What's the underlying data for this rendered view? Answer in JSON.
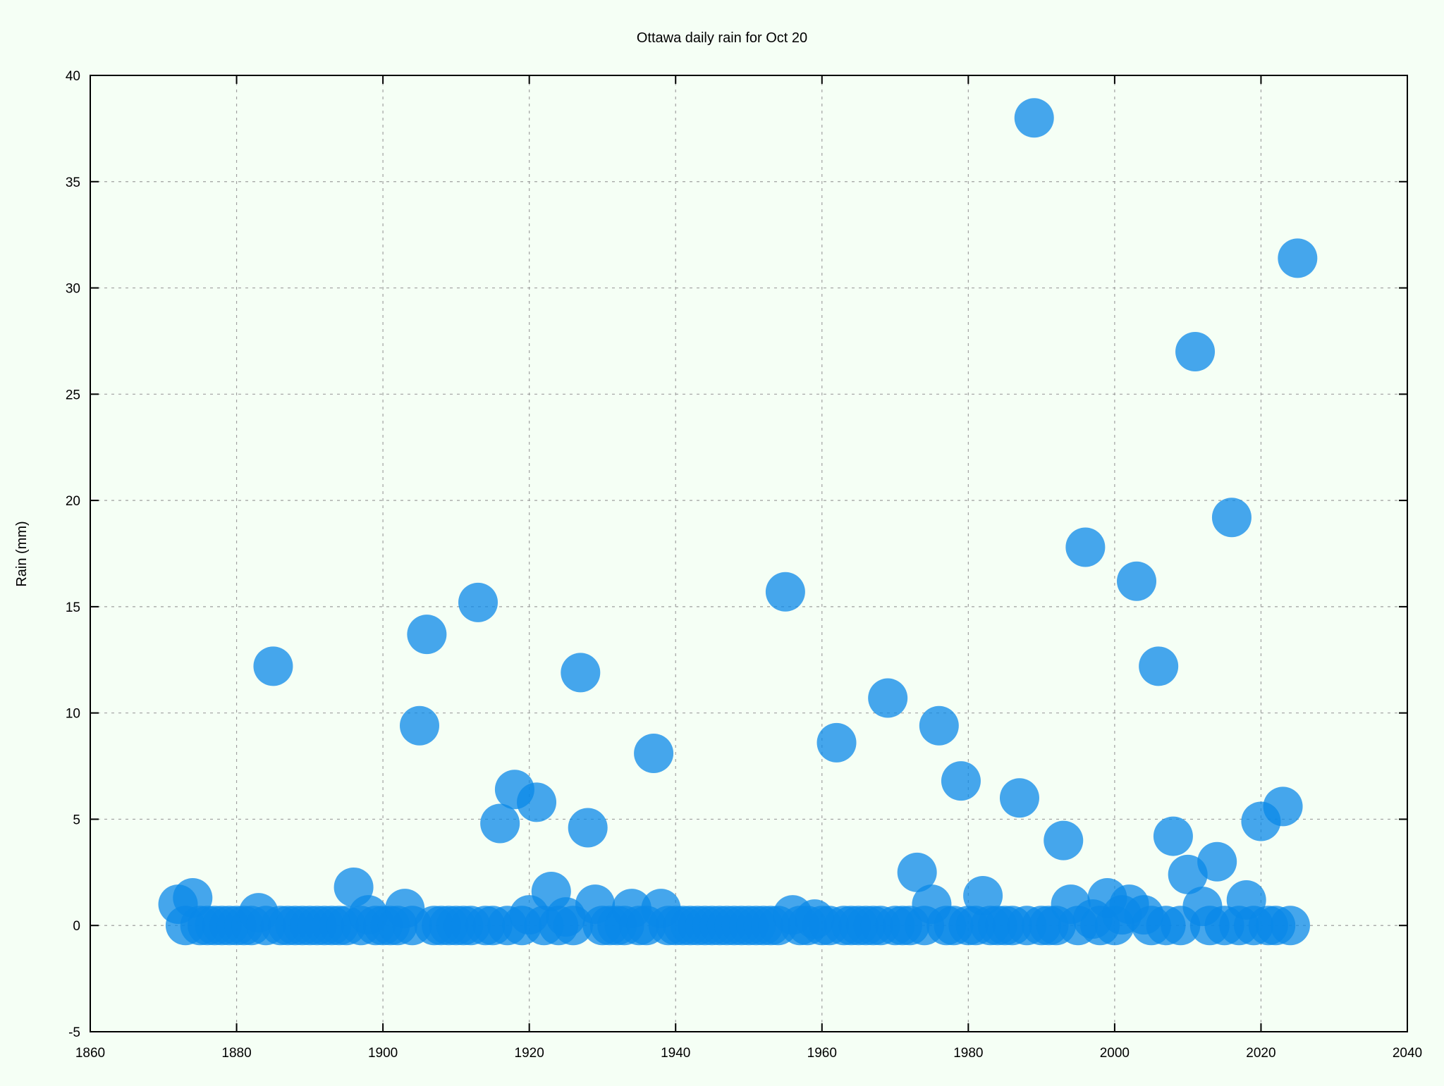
{
  "chart_data": {
    "type": "scatter",
    "title": "Ottawa daily rain for Oct 20",
    "xlabel": "",
    "ylabel": "Rain (mm)",
    "xlim": [
      1860,
      2040
    ],
    "ylim": [
      -5,
      40
    ],
    "xticks": [
      1860,
      1880,
      1900,
      1920,
      1940,
      1960,
      1980,
      2000,
      2020,
      2040
    ],
    "yticks": [
      -5,
      0,
      5,
      10,
      15,
      20,
      25,
      30,
      35,
      40
    ],
    "grid": true,
    "legend": "none",
    "marker_color": "#0a88e8",
    "background": "#f5fff5",
    "series": [
      {
        "x": [
          1872,
          1873,
          1874,
          1875,
          1876,
          1877,
          1878,
          1879,
          1880,
          1881,
          1882,
          1883,
          1884,
          1885,
          1886,
          1887,
          1888,
          1889,
          1890,
          1891,
          1892,
          1893,
          1894,
          1895,
          1896,
          1897,
          1898,
          1899,
          1900,
          1901,
          1902,
          1903,
          1904,
          1905,
          1906,
          1907,
          1908,
          1909,
          1910,
          1911,
          1912,
          1913,
          1914,
          1915,
          1916,
          1917,
          1918,
          1919,
          1920,
          1921,
          1922,
          1923,
          1924,
          1925,
          1926,
          1927,
          1928,
          1929,
          1930,
          1931,
          1932,
          1933,
          1934,
          1935,
          1936,
          1937,
          1938,
          1939,
          1940,
          1941,
          1942,
          1943,
          1944,
          1945,
          1946,
          1947,
          1948,
          1949,
          1950,
          1951,
          1952,
          1953,
          1954,
          1955,
          1956,
          1957,
          1958,
          1959,
          1960,
          1961,
          1962,
          1963,
          1964,
          1965,
          1966,
          1967,
          1968,
          1969,
          1970,
          1971,
          1972,
          1973,
          1974,
          1975,
          1976,
          1977,
          1978,
          1979,
          1980,
          1981,
          1982,
          1983,
          1984,
          1985,
          1986,
          1987,
          1988,
          1989,
          1990,
          1991,
          1992,
          1993,
          1994,
          1995,
          1996,
          1997,
          1998,
          1999,
          2000,
          2001,
          2002,
          2003,
          2004,
          2005,
          2006,
          2007,
          2008,
          2009,
          2010,
          2011,
          2012,
          2013,
          2014,
          2015,
          2016,
          2017,
          2018,
          2019,
          2020,
          2021,
          2022,
          2023,
          2024,
          2025
        ],
        "y": [
          1.0,
          0.0,
          1.3,
          0.0,
          0.0,
          0.0,
          0.0,
          0.0,
          0.0,
          0.0,
          0.0,
          0.6,
          0.0,
          12.2,
          0.0,
          0.0,
          0.0,
          0.0,
          0.0,
          0.0,
          0.0,
          0.0,
          0.0,
          0.0,
          1.8,
          0.0,
          0.5,
          0.0,
          0.0,
          0.0,
          0.0,
          0.8,
          0.0,
          9.4,
          13.7,
          0.0,
          0.0,
          0.0,
          0.0,
          0.0,
          0.0,
          15.2,
          0.0,
          0.0,
          4.8,
          0.0,
          6.4,
          0.0,
          0.5,
          5.8,
          0.0,
          1.6,
          0.0,
          0.4,
          0.0,
          11.9,
          4.6,
          1.0,
          0.0,
          0.0,
          0.0,
          0.0,
          0.8,
          0.0,
          0.0,
          8.1,
          0.8,
          0.0,
          0.0,
          0.0,
          0.0,
          0.0,
          0.0,
          0.0,
          0.0,
          0.0,
          0.0,
          0.0,
          0.0,
          0.0,
          0.0,
          0.0,
          0.0,
          15.7,
          0.5,
          0.0,
          0.0,
          0.3,
          0.0,
          0.0,
          8.6,
          0.0,
          0.0,
          0.0,
          0.0,
          0.0,
          0.0,
          10.7,
          0.0,
          0.0,
          0.0,
          2.5,
          0.0,
          1.0,
          9.4,
          0.0,
          0.0,
          6.8,
          0.0,
          0.0,
          1.4,
          0.0,
          0.0,
          0.0,
          0.0,
          6.0,
          0.0,
          38.0,
          0.0,
          0.0,
          0.0,
          4.0,
          1.0,
          0.0,
          17.8,
          0.3,
          0.0,
          1.3,
          0.0,
          0.5,
          1.0,
          16.2,
          0.5,
          0.0,
          12.2,
          0.0,
          4.2,
          0.0,
          2.4,
          27.0,
          0.9,
          0.0,
          3.0,
          0.0,
          19.2,
          0.0,
          1.2,
          0.0,
          4.9,
          0.0,
          0.0,
          5.6,
          0.0,
          31.4
        ]
      }
    ]
  }
}
